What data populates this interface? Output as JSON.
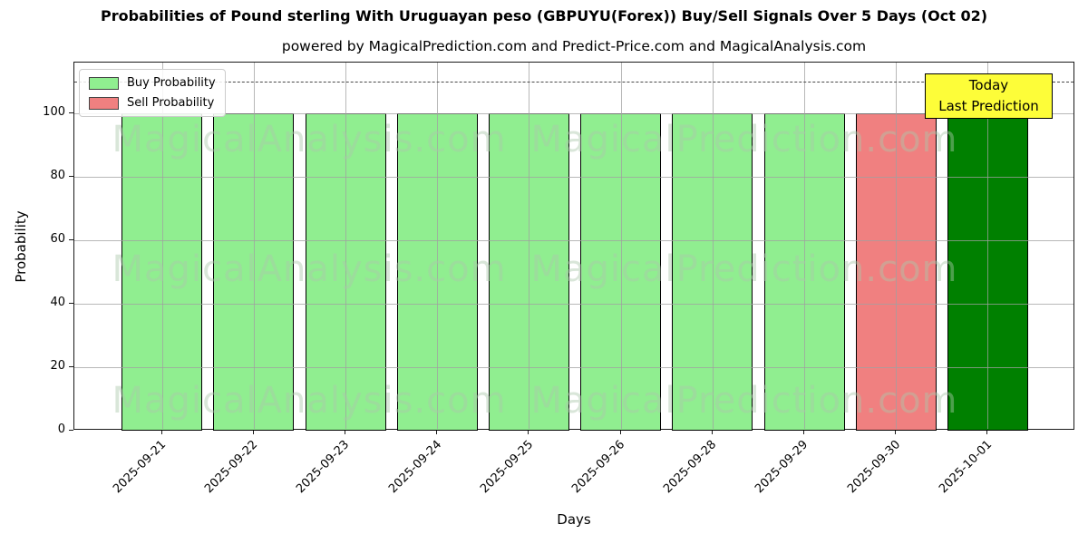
{
  "chart": {
    "title": "Probabilities of Pound sterling With Uruguayan peso (GBPUYU(Forex)) Buy/Sell Signals Over 5 Days (Oct 02)",
    "subtitle": "powered by MagicalPrediction.com and Predict-Price.com and MagicalAnalysis.com",
    "xlabel": "Days",
    "ylabel": "Probability"
  },
  "legend": {
    "items": [
      {
        "label": "Buy Probability",
        "color": "#90EE90"
      },
      {
        "label": "Sell Probability",
        "color": "#F08080"
      }
    ]
  },
  "annotation": {
    "line1": "Today",
    "line2": "Last Prediction",
    "bg_color": "#FDFD39",
    "border_color": "#000000"
  },
  "watermarks": [
    "MagicalAnalysis.com",
    "MagicalPrediction.com"
  ],
  "colors": {
    "buy": "#90EE90",
    "sell": "#F08080",
    "today_buy": "#008000",
    "grid": "#a0a0a0",
    "dashed_line": "#4a4a4a"
  },
  "chart_data": {
    "type": "bar",
    "title": "Probabilities of Pound sterling With Uruguayan peso (GBPUYU(Forex)) Buy/Sell Signals Over 5 Days (Oct 02)",
    "subtitle": "powered by MagicalPrediction.com and Predict-Price.com and MagicalAnalysis.com",
    "xlabel": "Days",
    "ylabel": "Probability",
    "categories": [
      "2025-09-21",
      "2025-09-22",
      "2025-09-23",
      "2025-09-24",
      "2025-09-25",
      "2025-09-26",
      "2025-09-28",
      "2025-09-29",
      "2025-09-30",
      "2025-10-01"
    ],
    "series": [
      {
        "name": "Buy Probability",
        "color": "#90EE90",
        "values": [
          100,
          100,
          100,
          100,
          100,
          100,
          100,
          100,
          0,
          100
        ]
      },
      {
        "name": "Sell Probability",
        "color": "#F08080",
        "values": [
          0,
          0,
          0,
          0,
          0,
          0,
          0,
          0,
          100,
          0
        ]
      }
    ],
    "bars": [
      {
        "category": "2025-09-21",
        "value": 100,
        "series": "Buy Probability",
        "color": "#90EE90"
      },
      {
        "category": "2025-09-22",
        "value": 100,
        "series": "Buy Probability",
        "color": "#90EE90"
      },
      {
        "category": "2025-09-23",
        "value": 100,
        "series": "Buy Probability",
        "color": "#90EE90"
      },
      {
        "category": "2025-09-24",
        "value": 100,
        "series": "Buy Probability",
        "color": "#90EE90"
      },
      {
        "category": "2025-09-25",
        "value": 100,
        "series": "Buy Probability",
        "color": "#90EE90"
      },
      {
        "category": "2025-09-26",
        "value": 100,
        "series": "Buy Probability",
        "color": "#90EE90"
      },
      {
        "category": "2025-09-28",
        "value": 100,
        "series": "Buy Probability",
        "color": "#90EE90"
      },
      {
        "category": "2025-09-29",
        "value": 100,
        "series": "Buy Probability",
        "color": "#90EE90"
      },
      {
        "category": "2025-09-30",
        "value": 100,
        "series": "Sell Probability",
        "color": "#F08080"
      },
      {
        "category": "2025-10-01",
        "value": 100,
        "series": "Buy Probability",
        "color": "#008000",
        "note": "Today / Last Prediction"
      }
    ],
    "yticks": [
      0,
      20,
      40,
      60,
      80,
      100
    ],
    "ylim": [
      0,
      116
    ],
    "dashed_line_y": 110,
    "grid": true,
    "legend_position": "upper left",
    "annotation_text": "Today\nLast Prediction"
  }
}
